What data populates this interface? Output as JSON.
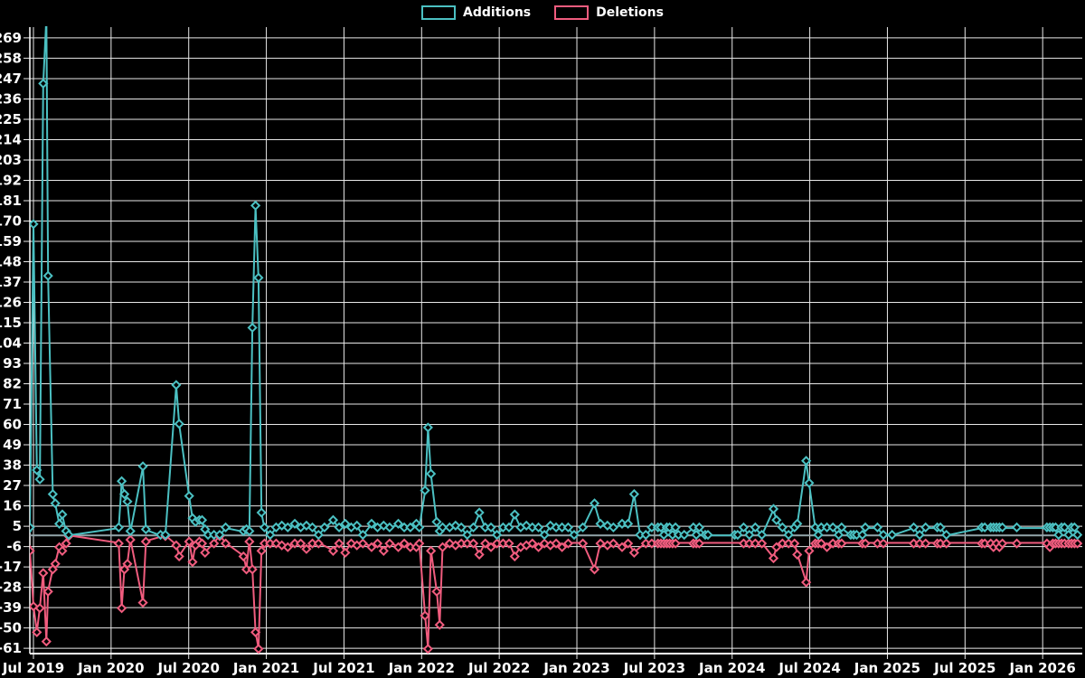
{
  "legend": {
    "additions_label": "Additions",
    "deletions_label": "Deletions"
  },
  "colors": {
    "additions": "#4bc0c2",
    "deletions": "#f05c7e",
    "background": "#000000",
    "grid": "#e8e8e8",
    "axis": "#ffffff",
    "zero_line": "#93a5aa",
    "text": "#ffffff"
  },
  "chart_data": {
    "type": "line",
    "title": "",
    "xlabel": "",
    "ylabel": "",
    "grid": true,
    "legend_position": "top-center",
    "marker": "diamond",
    "series_names": [
      "Additions",
      "Deletions"
    ],
    "x_ticks": [
      "Jul 2019",
      "Jan 2020",
      "Jul 2020",
      "Jan 2021",
      "Jul 2021",
      "Jan 2022",
      "Jul 2022",
      "Jan 2023",
      "Jul 2023",
      "Jan 2024",
      "Jul 2024",
      "Jan 2025",
      "Jul 2025",
      "Jan 2026"
    ],
    "y_ticks": [
      -61,
      -50,
      -39,
      -28,
      -17,
      -6,
      5,
      16,
      27,
      38,
      49,
      60,
      71,
      82,
      93,
      104,
      115,
      126,
      137,
      148,
      159,
      170,
      181,
      192,
      203,
      214,
      225,
      236,
      247,
      258,
      269
    ],
    "ylim": [
      -61,
      276
    ],
    "y_tick_step": 11,
    "points_note": "each point = [date, additions, deletions]; null = no sample for that series",
    "points": [
      [
        "2019-06-16",
        2,
        -6
      ],
      [
        "2019-06-23",
        4,
        -8
      ],
      [
        "2019-07-01",
        168,
        -38
      ],
      [
        "2019-07-09",
        35,
        -52
      ],
      [
        "2019-07-16",
        30,
        -39
      ],
      [
        "2019-07-24",
        244,
        -20
      ],
      [
        "2019-08-01",
        280,
        -57
      ],
      [
        "2019-08-05",
        140,
        -30
      ],
      [
        "2019-08-16",
        22,
        -18
      ],
      [
        "2019-08-22",
        17,
        -15
      ],
      [
        "2019-09-01",
        6,
        -6
      ],
      [
        "2019-09-08",
        11,
        -8
      ],
      [
        "2019-09-17",
        2,
        -4
      ],
      [
        "2019-09-23",
        0,
        0
      ],
      [
        "2020-01-19",
        4,
        -4
      ],
      [
        "2020-01-26",
        29,
        -39
      ],
      [
        "2020-02-02",
        22,
        -18
      ],
      [
        "2020-02-09",
        18,
        -15
      ],
      [
        "2020-02-16",
        2,
        -2
      ],
      [
        "2020-03-15",
        37,
        -36
      ],
      [
        "2020-03-22",
        3,
        -3
      ],
      [
        "2020-04-26",
        0,
        null
      ],
      [
        "2020-05-07",
        0,
        0
      ],
      [
        "2020-06-02",
        81,
        -5
      ],
      [
        "2020-06-09",
        60,
        -11
      ],
      [
        "2020-07-02",
        21,
        -3
      ],
      [
        "2020-07-10",
        9,
        -14
      ],
      [
        "2020-07-17",
        7,
        -5
      ],
      [
        "2020-07-26",
        8,
        -3
      ],
      [
        "2020-08-02",
        8,
        -4
      ],
      [
        "2020-08-09",
        3,
        -9
      ],
      [
        "2020-08-16",
        0,
        null
      ],
      [
        "2020-08-30",
        0,
        -4
      ],
      [
        "2020-09-13",
        0,
        0
      ],
      [
        "2020-09-27",
        4,
        -4
      ],
      [
        "2020-11-08",
        2,
        -11
      ],
      [
        "2020-11-15",
        3,
        -18
      ],
      [
        "2020-11-22",
        2,
        -3
      ],
      [
        "2020-11-29",
        112,
        -18
      ],
      [
        "2020-12-06",
        178,
        -52
      ],
      [
        "2020-12-13",
        139,
        -61
      ],
      [
        "2020-12-20",
        12,
        -8
      ],
      [
        "2020-12-27",
        4,
        -4
      ],
      [
        "2021-01-10",
        0,
        -4
      ],
      [
        "2021-01-24",
        4,
        -4
      ],
      [
        "2021-02-07",
        5,
        -5
      ],
      [
        "2021-02-21",
        4,
        -6
      ],
      [
        "2021-03-07",
        6,
        -4
      ],
      [
        "2021-03-21",
        4,
        -4
      ],
      [
        "2021-04-04",
        5,
        -7
      ],
      [
        "2021-04-18",
        4,
        -4
      ],
      [
        "2021-05-02",
        0,
        -4
      ],
      [
        "2021-05-16",
        4,
        null
      ],
      [
        "2021-06-06",
        8,
        -8
      ],
      [
        "2021-06-20",
        4,
        -4
      ],
      [
        "2021-07-04",
        6,
        -9
      ],
      [
        "2021-07-18",
        4,
        -4
      ],
      [
        "2021-08-01",
        5,
        -5
      ],
      [
        "2021-08-15",
        0,
        -4
      ],
      [
        "2021-09-05",
        6,
        -6
      ],
      [
        "2021-09-19",
        4,
        -4
      ],
      [
        "2021-10-03",
        5,
        -8
      ],
      [
        "2021-10-17",
        4,
        -4
      ],
      [
        "2021-11-07",
        6,
        -6
      ],
      [
        "2021-11-21",
        4,
        -4
      ],
      [
        "2021-12-05",
        4,
        -6
      ],
      [
        "2021-12-19",
        6,
        -6
      ],
      [
        "2021-12-26",
        4,
        -4
      ],
      [
        "2022-01-09",
        24,
        -43
      ],
      [
        "2022-01-16",
        58,
        -61
      ],
      [
        "2022-01-23",
        33,
        -8
      ],
      [
        "2022-02-06",
        7,
        -30
      ],
      [
        "2022-02-13",
        2,
        -48
      ],
      [
        "2022-02-20",
        4,
        -6
      ],
      [
        "2022-03-06",
        4,
        -4
      ],
      [
        "2022-03-20",
        5,
        -5
      ],
      [
        "2022-04-03",
        4,
        -4
      ],
      [
        "2022-04-17",
        0,
        -4
      ],
      [
        "2022-05-01",
        4,
        -4
      ],
      [
        "2022-05-15",
        12,
        -10
      ],
      [
        "2022-05-29",
        4,
        -4
      ],
      [
        "2022-06-12",
        4,
        -6
      ],
      [
        "2022-06-26",
        0,
        -4
      ],
      [
        "2022-07-10",
        4,
        -4
      ],
      [
        "2022-07-24",
        4,
        -4
      ],
      [
        "2022-08-07",
        11,
        -11
      ],
      [
        "2022-08-21",
        4,
        -6
      ],
      [
        "2022-09-04",
        5,
        -5
      ],
      [
        "2022-09-18",
        4,
        -4
      ],
      [
        "2022-10-02",
        4,
        -6
      ],
      [
        "2022-10-16",
        0,
        -4
      ],
      [
        "2022-10-30",
        5,
        -5
      ],
      [
        "2022-11-13",
        4,
        -4
      ],
      [
        "2022-11-27",
        4,
        -6
      ],
      [
        "2022-12-11",
        4,
        -4
      ],
      [
        "2022-12-25",
        0,
        null
      ],
      [
        "2023-01-15",
        4,
        -4
      ],
      [
        "2023-02-12",
        17,
        -18
      ],
      [
        "2023-02-26",
        6,
        -4
      ],
      [
        "2023-03-12",
        5,
        -5
      ],
      [
        "2023-03-26",
        4,
        -4
      ],
      [
        "2023-04-16",
        6,
        -6
      ],
      [
        "2023-04-30",
        6,
        -4
      ],
      [
        "2023-05-14",
        22,
        -9
      ],
      [
        "2023-05-28",
        0,
        null
      ],
      [
        "2023-06-11",
        0,
        -4
      ],
      [
        "2023-06-25",
        4,
        -4
      ],
      [
        "2023-07-09",
        4,
        -4
      ],
      [
        "2023-07-16",
        4,
        -4
      ],
      [
        "2023-07-23",
        0,
        -4
      ],
      [
        "2023-07-30",
        4,
        -4
      ],
      [
        "2023-08-06",
        4,
        -4
      ],
      [
        "2023-08-13",
        0,
        -4
      ],
      [
        "2023-08-20",
        4,
        -4
      ],
      [
        "2023-08-27",
        0,
        null
      ],
      [
        "2023-09-10",
        0,
        null
      ],
      [
        "2023-10-01",
        4,
        -4
      ],
      [
        "2023-10-08",
        0,
        -4
      ],
      [
        "2023-10-15",
        4,
        -4
      ],
      [
        "2023-10-29",
        0,
        null
      ],
      [
        "2023-11-05",
        0,
        null
      ],
      [
        "2024-01-07",
        0,
        null
      ],
      [
        "2024-01-14",
        0,
        null
      ],
      [
        "2024-01-28",
        4,
        -4
      ],
      [
        "2024-02-11",
        0,
        -4
      ],
      [
        "2024-02-25",
        4,
        -4
      ],
      [
        "2024-03-10",
        0,
        -4
      ],
      [
        "2024-04-07",
        14,
        -12
      ],
      [
        "2024-04-14",
        8,
        -6
      ],
      [
        "2024-04-28",
        4,
        -4
      ],
      [
        "2024-05-12",
        0,
        -4
      ],
      [
        "2024-05-26",
        4,
        -4
      ],
      [
        "2024-06-02",
        6,
        -10
      ],
      [
        "2024-06-23",
        40,
        -25
      ],
      [
        "2024-06-30",
        28,
        -8
      ],
      [
        "2024-07-14",
        4,
        -4
      ],
      [
        "2024-07-21",
        0,
        -4
      ],
      [
        "2024-07-28",
        4,
        -4
      ],
      [
        "2024-08-11",
        4,
        -6
      ],
      [
        "2024-08-25",
        4,
        -4
      ],
      [
        "2024-09-08",
        0,
        -4
      ],
      [
        "2024-09-15",
        4,
        -4
      ],
      [
        "2024-10-06",
        0,
        null
      ],
      [
        "2024-10-13",
        0,
        null
      ],
      [
        "2024-10-20",
        0,
        null
      ],
      [
        "2024-11-03",
        0,
        -4
      ],
      [
        "2024-11-10",
        4,
        -4
      ],
      [
        "2024-12-08",
        4,
        -4
      ],
      [
        "2024-12-22",
        0,
        -4
      ],
      [
        "2025-01-12",
        0,
        null
      ],
      [
        "2025-03-02",
        4,
        -4
      ],
      [
        "2025-03-16",
        0,
        -4
      ],
      [
        "2025-03-30",
        4,
        -4
      ],
      [
        "2025-04-27",
        4,
        -4
      ],
      [
        "2025-05-04",
        4,
        -4
      ],
      [
        "2025-05-18",
        0,
        -4
      ],
      [
        "2025-08-10",
        4,
        -4
      ],
      [
        "2025-08-17",
        4,
        -4
      ],
      [
        "2025-08-31",
        4,
        -4
      ],
      [
        "2025-09-07",
        4,
        -6
      ],
      [
        "2025-09-14",
        4,
        -4
      ],
      [
        "2025-09-21",
        4,
        -6
      ],
      [
        "2025-09-28",
        4,
        -4
      ],
      [
        "2025-11-01",
        4,
        -4
      ],
      [
        "2026-01-11",
        4,
        -4
      ],
      [
        "2026-01-18",
        4,
        -6
      ],
      [
        "2026-01-25",
        4,
        -4
      ],
      [
        "2026-02-01",
        4,
        -4
      ],
      [
        "2026-02-08",
        0,
        -4
      ],
      [
        "2026-02-15",
        4,
        -4
      ],
      [
        "2026-02-22",
        4,
        -4
      ],
      [
        "2026-03-01",
        0,
        -4
      ],
      [
        "2026-03-08",
        4,
        -4
      ],
      [
        "2026-03-15",
        4,
        -4
      ],
      [
        "2026-03-22",
        0,
        -4
      ]
    ]
  }
}
